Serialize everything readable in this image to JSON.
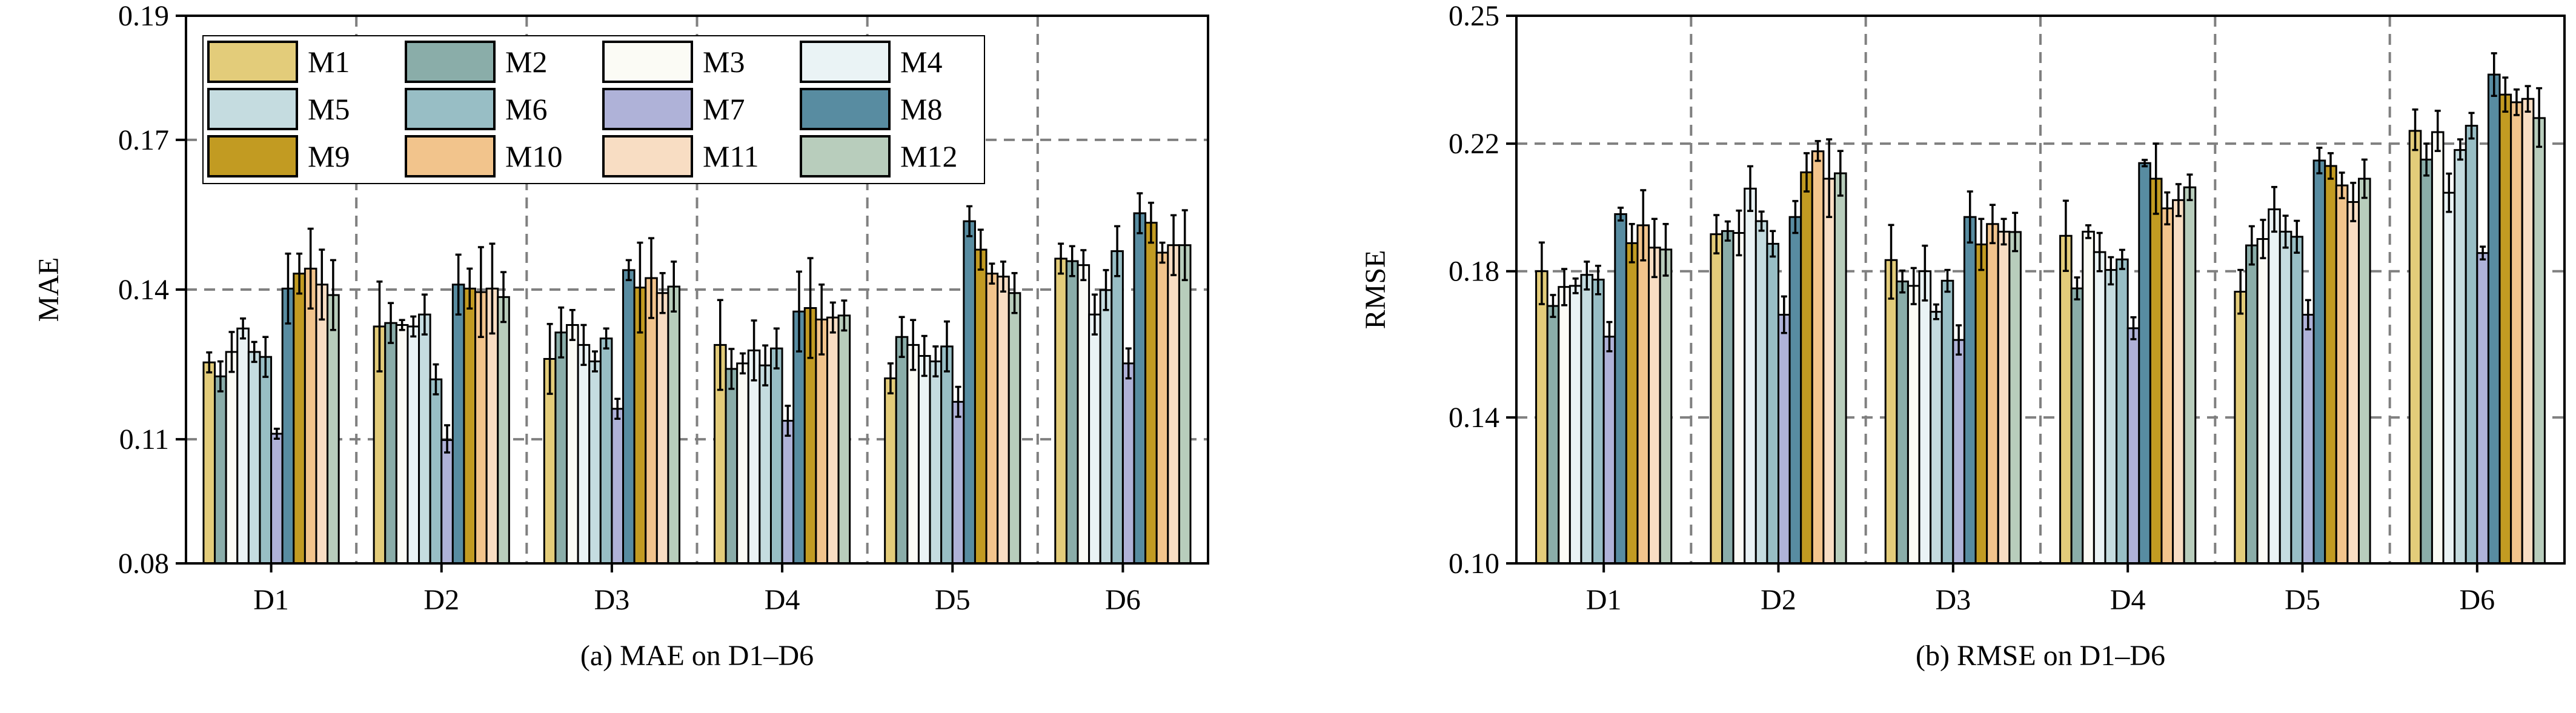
{
  "chart_data": [
    {
      "type": "bar",
      "caption": "(a) MAE on D1–D6",
      "ylabel": "MAE",
      "xlabel": "",
      "categories": [
        "D1",
        "D2",
        "D3",
        "D4",
        "D5",
        "D6"
      ],
      "yticks": [
        0.08,
        0.11,
        0.14,
        0.17,
        0.19
      ],
      "ytick_labels": [
        "0.08",
        "0.11",
        "0.14",
        "0.17",
        "0.19"
      ],
      "ylim": [
        0.08,
        0.19
      ],
      "grid": true,
      "legend": "top-left",
      "series": [
        {
          "name": "M1",
          "values": [
            0.1254,
            0.1326,
            0.1261,
            0.1289,
            0.1222,
            0.1462
          ],
          "errors": [
            0.002,
            0.009,
            0.007,
            0.009,
            0.003,
            0.003
          ]
        },
        {
          "name": "M2",
          "values": [
            0.1226,
            0.1333,
            0.1314,
            0.1241,
            0.1305,
            0.1457
          ],
          "errors": [
            0.003,
            0.004,
            0.005,
            0.004,
            0.004,
            0.003
          ]
        },
        {
          "name": "M3",
          "values": [
            0.1275,
            0.1329,
            0.1329,
            0.1252,
            0.1289,
            0.1449
          ],
          "errors": [
            0.004,
            0.001,
            0.003,
            0.002,
            0.005,
            0.003
          ]
        },
        {
          "name": "M4",
          "values": [
            0.1322,
            0.1326,
            0.1289,
            0.1278,
            0.1267,
            0.135
          ],
          "errors": [
            0.002,
            0.002,
            0.004,
            0.006,
            0.004,
            0.004
          ]
        },
        {
          "name": "M5",
          "values": [
            0.1275,
            0.135,
            0.1256,
            0.1248,
            0.1256,
            0.1399
          ],
          "errors": [
            0.002,
            0.004,
            0.002,
            0.004,
            0.003,
            0.004
          ]
        },
        {
          "name": "M6",
          "values": [
            0.1265,
            0.122,
            0.1302,
            0.1282,
            0.1286,
            0.1477
          ],
          "errors": [
            0.004,
            0.003,
            0.002,
            0.004,
            0.005,
            0.005
          ]
        },
        {
          "name": "M7",
          "values": [
            0.1111,
            0.1098,
            0.1161,
            0.1137,
            0.1175,
            0.1252
          ],
          "errors": [
            0.001,
            0.003,
            0.002,
            0.003,
            0.003,
            0.003
          ]
        },
        {
          "name": "M8",
          "values": [
            0.1402,
            0.141,
            0.1439,
            0.1356,
            0.1537,
            0.1553
          ],
          "errors": [
            0.007,
            0.006,
            0.002,
            0.008,
            0.003,
            0.004
          ]
        },
        {
          "name": "M9",
          "values": [
            0.1432,
            0.1402,
            0.1404,
            0.1363,
            0.148,
            0.1534
          ],
          "errors": [
            0.004,
            0.004,
            0.009,
            0.01,
            0.004,
            0.004
          ]
        },
        {
          "name": "M10",
          "values": [
            0.1442,
            0.1395,
            0.1423,
            0.134,
            0.1432,
            0.1474
          ],
          "errors": [
            0.008,
            0.009,
            0.008,
            0.007,
            0.002,
            0.002
          ]
        },
        {
          "name": "M11",
          "values": [
            0.141,
            0.1402,
            0.1393,
            0.1344,
            0.1426,
            0.1489
          ],
          "errors": [
            0.007,
            0.009,
            0.004,
            0.003,
            0.003,
            0.006
          ]
        },
        {
          "name": "M12",
          "values": [
            0.1389,
            0.1385,
            0.1406,
            0.1348,
            0.1393,
            0.1489
          ],
          "errors": [
            0.007,
            0.005,
            0.005,
            0.003,
            0.004,
            0.007
          ]
        }
      ]
    },
    {
      "type": "bar",
      "caption": "(b) RMSE on D1–D6",
      "ylabel": "RMSE",
      "xlabel": "",
      "categories": [
        "D1",
        "D2",
        "D3",
        "D4",
        "D5",
        "D6"
      ],
      "yticks": [
        0.1,
        0.14,
        0.18,
        0.22,
        0.25
      ],
      "ytick_labels": [
        "0.10",
        "0.14",
        "0.18",
        "0.22",
        "0.25"
      ],
      "ylim": [
        0.1,
        0.25
      ],
      "grid": true,
      "legend": "none",
      "series": [
        {
          "name": "M1",
          "values": [
            0.18,
            0.1916,
            0.1835,
            0.1911,
            0.1744,
            0.223
          ],
          "errors": [
            0.009,
            0.006,
            0.011,
            0.011,
            0.006,
            0.005
          ]
        },
        {
          "name": "M2",
          "values": [
            0.1705,
            0.1926,
            0.1772,
            0.1753,
            0.1881,
            0.215
          ],
          "errors": [
            0.003,
            0.003,
            0.003,
            0.003,
            0.006,
            0.005
          ]
        },
        {
          "name": "M3",
          "values": [
            0.1757,
            0.192,
            0.176,
            0.1924,
            0.1901,
            0.2227
          ],
          "errors": [
            0.005,
            0.007,
            0.005,
            0.002,
            0.006,
            0.005
          ]
        },
        {
          "name": "M4",
          "values": [
            0.176,
            0.2059,
            0.18,
            0.186,
            0.1994,
            0.2046
          ],
          "errors": [
            0.002,
            0.007,
            0.008,
            0.006,
            0.007,
            0.006
          ]
        },
        {
          "name": "M5",
          "values": [
            0.179,
            0.1957,
            0.1689,
            0.1804,
            0.1924,
            0.218
          ],
          "errors": [
            0.004,
            0.003,
            0.002,
            0.004,
            0.005,
            0.003
          ]
        },
        {
          "name": "M6",
          "values": [
            0.1777,
            0.1886,
            0.1774,
            0.1837,
            0.1908,
            0.2242
          ],
          "errors": [
            0.004,
            0.004,
            0.003,
            0.003,
            0.005,
            0.003
          ]
        },
        {
          "name": "M7",
          "values": [
            0.1621,
            0.1681,
            0.1612,
            0.1644,
            0.1681,
            0.1857
          ],
          "errors": [
            0.004,
            0.005,
            0.004,
            0.003,
            0.004,
            0.002
          ]
        },
        {
          "name": "M8",
          "values": [
            0.1979,
            0.197,
            0.197,
            0.2139,
            0.2147,
            0.2362
          ],
          "errors": [
            0.002,
            0.005,
            0.008,
            0.001,
            0.004,
            0.005
          ]
        },
        {
          "name": "M9",
          "values": [
            0.1888,
            0.211,
            0.1884,
            0.209,
            0.213,
            0.2315
          ],
          "errors": [
            0.006,
            0.006,
            0.008,
            0.011,
            0.004,
            0.004
          ]
        },
        {
          "name": "M10",
          "values": [
            0.1944,
            0.2176,
            0.1948,
            0.1997,
            0.2069,
            0.2297
          ],
          "errors": [
            0.011,
            0.003,
            0.006,
            0.005,
            0.004,
            0.003
          ]
        },
        {
          "name": "M11",
          "values": [
            0.1874,
            0.209,
            0.1924,
            0.2023,
            0.2017,
            0.2305
          ],
          "errors": [
            0.009,
            0.012,
            0.004,
            0.005,
            0.006,
            0.003
          ]
        },
        {
          "name": "M12",
          "values": [
            0.1868,
            0.2107,
            0.1923,
            0.2063,
            0.209,
            0.226
          ],
          "errors": [
            0.008,
            0.007,
            0.006,
            0.004,
            0.006,
            0.007
          ]
        }
      ]
    }
  ],
  "colors": {
    "M1": "#E3CC7A",
    "M2": "#8AADA9",
    "M3": "#FBFBF5",
    "M4": "#EAF3F5",
    "M5": "#C5DCE0",
    "M6": "#98BEC5",
    "M7": "#AFB2D8",
    "M8": "#588CA1",
    "M9": "#C29B22",
    "M10": "#F2C48C",
    "M11": "#F8DDC3",
    "M12": "#B8CDBC"
  },
  "legend_order": [
    "M1",
    "M2",
    "M3",
    "M4",
    "M5",
    "M6",
    "M7",
    "M8",
    "M9",
    "M10",
    "M11",
    "M12"
  ]
}
